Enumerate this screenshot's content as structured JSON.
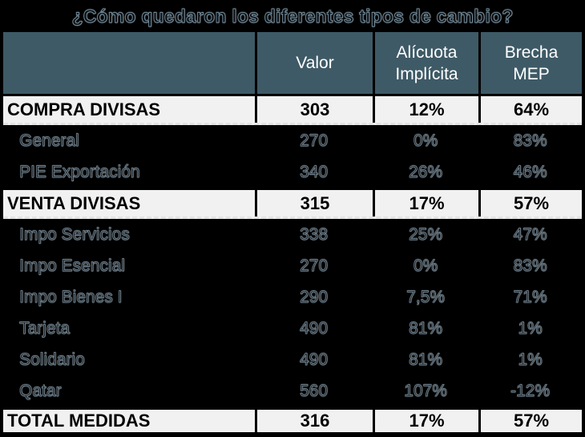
{
  "title": "¿Cómo quedaron los diferentes tipos de cambio?",
  "colors": {
    "background": "#000000",
    "header_bg": "#3e5a66",
    "header_text": "#ffffff",
    "light_row_bg": "#f1f1f1",
    "body_text": "#000000"
  },
  "header": {
    "empty": "",
    "valor": "Valor",
    "alicuota": [
      "Alícuota",
      "Implícita"
    ],
    "brecha": [
      "Brecha",
      "MEP"
    ]
  },
  "chart_data": {
    "type": "table",
    "title": "¿Cómo quedaron los diferentes tipos de cambio?",
    "columns": [
      "",
      "Valor",
      "Alícuota Implícita",
      "Brecha MEP"
    ],
    "row_styles": [
      "section",
      "detail",
      "detail",
      "section",
      "detail",
      "detail",
      "detail",
      "detail",
      "detail",
      "detail",
      "total"
    ],
    "rows": [
      [
        "COMPRA DIVISAS",
        "303",
        "12%",
        "64%"
      ],
      [
        "General",
        "270",
        "0%",
        "83%"
      ],
      [
        "PIE Exportación",
        "340",
        "26%",
        "46%"
      ],
      [
        "VENTA DIVISAS",
        "315",
        "17%",
        "57%"
      ],
      [
        "Impo Servicios",
        "338",
        "25%",
        "47%"
      ],
      [
        "Impo Esencial",
        "270",
        "0%",
        "83%"
      ],
      [
        "Impo Bienes I",
        "290",
        "7,5%",
        "71%"
      ],
      [
        "Tarjeta",
        "490",
        "81%",
        "1%"
      ],
      [
        "Solidario",
        "490",
        "81%",
        "1%"
      ],
      [
        "Qatar",
        "560",
        "107%",
        "-12%"
      ],
      [
        "TOTAL MEDIDAS",
        "316",
        "17%",
        "57%"
      ]
    ]
  }
}
